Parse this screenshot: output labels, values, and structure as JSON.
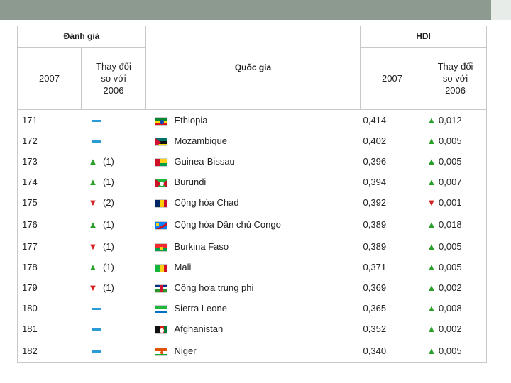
{
  "header": {
    "rank_group": "Đánh giá",
    "hdi_group": "HDI",
    "rank_2007": "2007",
    "rank_change": "Thay đổi so với 2006",
    "country": "Quốc gia",
    "hdi_2007": "2007",
    "hdi_change": "Thay đổi so với 2006"
  },
  "rows": [
    {
      "rank": "171",
      "rank_change_dir": "same",
      "rank_change": "",
      "flag_icon": "ethiopia-flag-icon",
      "country": "Ethiopia",
      "hdi": "0,414",
      "hdi_change_dir": "up",
      "hdi_change": "0,012"
    },
    {
      "rank": "172",
      "rank_change_dir": "same",
      "rank_change": "",
      "flag_icon": "mozambique-flag-icon",
      "country": "Mozambique",
      "hdi": "0,402",
      "hdi_change_dir": "up",
      "hdi_change": "0,005"
    },
    {
      "rank": "173",
      "rank_change_dir": "up",
      "rank_change": "(1)",
      "flag_icon": "guinea-bissau-flag-icon",
      "country": "Guinea-Bissau",
      "hdi": "0,396",
      "hdi_change_dir": "up",
      "hdi_change": "0,005"
    },
    {
      "rank": "174",
      "rank_change_dir": "up",
      "rank_change": "(1)",
      "flag_icon": "burundi-flag-icon",
      "country": "Burundi",
      "hdi": "0,394",
      "hdi_change_dir": "up",
      "hdi_change": "0,007"
    },
    {
      "rank": "175",
      "rank_change_dir": "down",
      "rank_change": "(2)",
      "flag_icon": "chad-flag-icon",
      "country": "Cộng hòa Chad",
      "hdi": "0,392",
      "hdi_change_dir": "down",
      "hdi_change": "0,001"
    },
    {
      "rank": "176",
      "rank_change_dir": "up",
      "rank_change": "(1)",
      "flag_icon": "dr-congo-flag-icon",
      "country": "Cộng hòa Dân chủ Congo",
      "hdi": "0,389",
      "hdi_change_dir": "up",
      "hdi_change": "0,018"
    },
    {
      "rank": "177",
      "rank_change_dir": "down",
      "rank_change": "(1)",
      "flag_icon": "burkina-faso-flag-icon",
      "country": "Burkina Faso",
      "hdi": "0,389",
      "hdi_change_dir": "up",
      "hdi_change": "0,005"
    },
    {
      "rank": "178",
      "rank_change_dir": "up",
      "rank_change": "(1)",
      "flag_icon": "mali-flag-icon",
      "country": "Mali",
      "hdi": "0,371",
      "hdi_change_dir": "up",
      "hdi_change": "0,005"
    },
    {
      "rank": "179",
      "rank_change_dir": "down",
      "rank_change": "(1)",
      "flag_icon": "central-african-republic-flag-icon",
      "country": "Cộng hơa trung phi",
      "hdi": "0,369",
      "hdi_change_dir": "up",
      "hdi_change": "0,002"
    },
    {
      "rank": "180",
      "rank_change_dir": "same",
      "rank_change": "",
      "flag_icon": "sierra-leone-flag-icon",
      "country": "Sierra Leone",
      "hdi": "0,365",
      "hdi_change_dir": "up",
      "hdi_change": "0,008"
    },
    {
      "rank": "181",
      "rank_change_dir": "same",
      "rank_change": "",
      "flag_icon": "afghanistan-flag-icon",
      "country": "Afghanistan",
      "hdi": "0,352",
      "hdi_change_dir": "up",
      "hdi_change": "0,002"
    },
    {
      "rank": "182",
      "rank_change_dir": "same",
      "rank_change": "",
      "flag_icon": "niger-flag-icon",
      "country": "Niger",
      "hdi": "0,340",
      "hdi_change_dir": "up",
      "hdi_change": "0,005"
    }
  ],
  "colors": {
    "up": "#2aa02a",
    "down": "#d42020",
    "same": "#2d9bd6",
    "top_bar": "#8d9a90"
  }
}
